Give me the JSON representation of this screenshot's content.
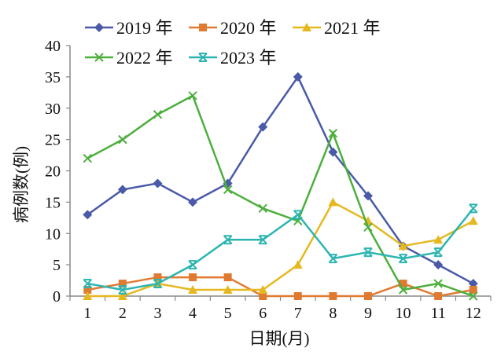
{
  "chart_data": {
    "type": "line",
    "title": "",
    "xlabel": "日期(月)",
    "ylabel": "病例数(例)",
    "categories": [
      "1",
      "2",
      "3",
      "4",
      "5",
      "6",
      "7",
      "8",
      "9",
      "10",
      "11",
      "12"
    ],
    "ylim": [
      0,
      40
    ],
    "yticks": [
      "0",
      "5",
      "10",
      "15",
      "20",
      "25",
      "30",
      "35",
      "40"
    ],
    "grid": false,
    "legend_position": "top",
    "series": [
      {
        "name": "2019 年",
        "color": "#4a5aa8",
        "marker": "diamond",
        "values": [
          13,
          17,
          18,
          15,
          18,
          27,
          35,
          23,
          16,
          8,
          5,
          2
        ]
      },
      {
        "name": "2020 年",
        "color": "#e07a30",
        "marker": "square",
        "values": [
          1,
          2,
          3,
          3,
          3,
          0,
          0,
          0,
          0,
          2,
          0,
          1
        ]
      },
      {
        "name": "2021 年",
        "color": "#e6b820",
        "marker": "triangle",
        "values": [
          0,
          0,
          2,
          1,
          1,
          1,
          5,
          15,
          12,
          8,
          9,
          12
        ]
      },
      {
        "name": "2022 年",
        "color": "#4caf3c",
        "marker": "x",
        "values": [
          22,
          25,
          29,
          32,
          17,
          14,
          12,
          26,
          11,
          1,
          2,
          0
        ]
      },
      {
        "name": "2023 年",
        "color": "#2cb5b0",
        "marker": "star",
        "values": [
          2,
          1,
          2,
          5,
          9,
          9,
          13,
          6,
          7,
          6,
          7,
          14
        ]
      }
    ]
  }
}
